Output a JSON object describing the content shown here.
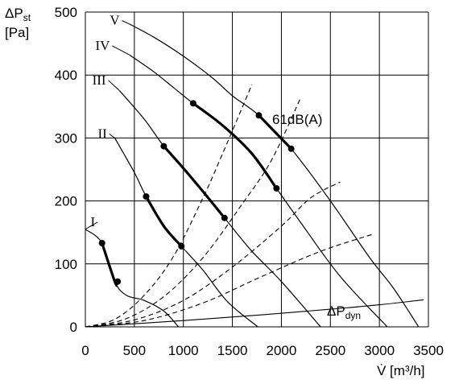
{
  "chart_data": {
    "type": "line",
    "ylabel": {
      "main": "ΔP",
      "sub": "st",
      "unit": "[Pa]"
    },
    "xlabel": "V̇ [m³/h]",
    "xlim": [
      0,
      3500
    ],
    "ylim": [
      0,
      500
    ],
    "x_ticks": [
      "0",
      "500",
      "1000",
      "1500",
      "2000",
      "2500",
      "3000",
      "3500"
    ],
    "y_ticks": [
      "0",
      "100",
      "200",
      "300",
      "400",
      "500"
    ],
    "grid": true,
    "fan_curves": [
      {
        "name": "I",
        "label_at": [
          100,
          160
        ],
        "points": [
          [
            0,
            155
          ],
          [
            170,
            133
          ],
          [
            300,
            72
          ],
          [
            420,
            50
          ],
          [
            600,
            42
          ],
          [
            800,
            25
          ],
          [
            950,
            0
          ]
        ],
        "bold": [
          [
            170,
            133
          ],
          [
            330,
            72
          ]
        ]
      },
      {
        "name": "II",
        "label_at": [
          220,
          300
        ],
        "points": [
          [
            300,
            300
          ],
          [
            500,
            245
          ],
          [
            620,
            207
          ],
          [
            800,
            160
          ],
          [
            980,
            128
          ],
          [
            1200,
            90
          ],
          [
            1450,
            40
          ],
          [
            1760,
            0
          ]
        ],
        "bold": [
          [
            620,
            207
          ],
          [
            980,
            128
          ]
        ]
      },
      {
        "name": "III",
        "label_at": [
          210,
          385
        ],
        "points": [
          [
            350,
            375
          ],
          [
            600,
            330
          ],
          [
            800,
            287
          ],
          [
            1000,
            252
          ],
          [
            1200,
            215
          ],
          [
            1420,
            173
          ],
          [
            1700,
            120
          ],
          [
            2000,
            72
          ],
          [
            2400,
            0
          ]
        ],
        "bold": [
          [
            800,
            287
          ],
          [
            1420,
            173
          ]
        ]
      },
      {
        "name": "IV",
        "label_at": [
          250,
          440
        ],
        "points": [
          [
            450,
            432
          ],
          [
            700,
            405
          ],
          [
            900,
            380
          ],
          [
            1100,
            355
          ],
          [
            1400,
            320
          ],
          [
            1700,
            275
          ],
          [
            1950,
            220
          ],
          [
            2200,
            165
          ],
          [
            2600,
            80
          ],
          [
            3080,
            0
          ]
        ],
        "bold": [
          [
            1100,
            355
          ],
          [
            1950,
            220
          ]
        ]
      },
      {
        "name": "V",
        "label_at": [
          350,
          480
        ],
        "points": [
          [
            450,
            481
          ],
          [
            700,
            460
          ],
          [
            1000,
            430
          ],
          [
            1300,
            395
          ],
          [
            1500,
            367
          ],
          [
            1770,
            336
          ],
          [
            2100,
            283
          ],
          [
            2500,
            200
          ],
          [
            2900,
            110
          ],
          [
            3150,
            60
          ],
          [
            3400,
            0
          ]
        ],
        "bold": [
          [
            1770,
            336
          ],
          [
            2100,
            283
          ]
        ]
      }
    ],
    "system_curves": [
      {
        "points": [
          [
            0,
            0
          ],
          [
            300,
            12
          ],
          [
            600,
            50
          ],
          [
            900,
            112
          ],
          [
            1200,
            205
          ],
          [
            1400,
            275
          ],
          [
            1700,
            385
          ]
        ]
      },
      {
        "points": [
          [
            0,
            0
          ],
          [
            400,
            12
          ],
          [
            800,
            48
          ],
          [
            1200,
            110
          ],
          [
            1600,
            195
          ],
          [
            1900,
            265
          ],
          [
            2200,
            365
          ]
        ]
      },
      {
        "points": [
          [
            0,
            0
          ],
          [
            500,
            11
          ],
          [
            1000,
            42
          ],
          [
            1500,
            95
          ],
          [
            2000,
            160
          ],
          [
            2300,
            205
          ],
          [
            2600,
            230
          ]
        ]
      },
      {
        "points": [
          [
            0,
            0
          ],
          [
            600,
            10
          ],
          [
            1200,
            38
          ],
          [
            1800,
            80
          ],
          [
            2400,
            120
          ],
          [
            2950,
            148
          ]
        ]
      }
    ],
    "dynamic_pressure_curve": {
      "name": "ΔPdyn",
      "points": [
        [
          0,
          0
        ],
        [
          1000,
          10
        ],
        [
          1800,
          19
        ],
        [
          2500,
          28
        ],
        [
          3000,
          35
        ],
        [
          3450,
          43
        ]
      ]
    },
    "annotations": [
      {
        "text": "61dB(A)",
        "at": [
          2100,
          322
        ]
      },
      {
        "text": "ΔP",
        "sub": "dyn",
        "at": [
          2450,
          22
        ]
      }
    ]
  }
}
